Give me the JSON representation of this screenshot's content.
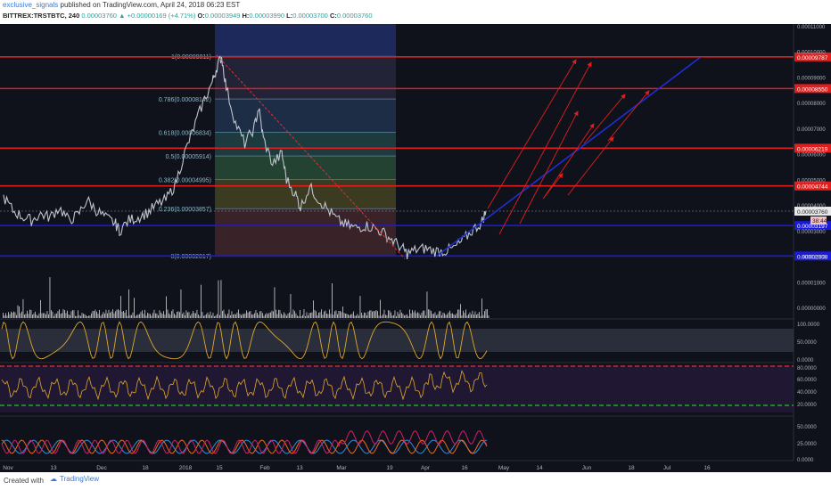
{
  "header": {
    "author": "exclusive_signals",
    "published_text": "published on TradingView.com, April 24, 2018 06:23 EST",
    "symbol": "BITTREX:TRSTBTC, 240",
    "ohlc": [
      {
        "label": "",
        "value": "0.00003760"
      },
      {
        "label": "",
        "value": "+0.00000169 (+4.71%)"
      },
      {
        "label": "O:",
        "value": "0.00003949"
      },
      {
        "label": "H:",
        "value": "0.00003990"
      },
      {
        "label": "L:",
        "value": "0.00003700"
      },
      {
        "label": "C:",
        "value": "0.00003760"
      }
    ]
  },
  "footer": {
    "created": "Created with",
    "brand": "TradingView"
  },
  "colors": {
    "background": "#0f121b",
    "candles": "#bfc4cc",
    "fib_box": "#2a3a8f",
    "red_level": "#e01e1e",
    "blue_level": "#1a1ad8",
    "trend_blue": "#1e2fd0",
    "rsi": "#e0a82a",
    "volume": "#dddddd"
  },
  "chart_data": [
    {
      "type": "candlestick",
      "name": "price",
      "y_scale": "log",
      "y_ticks": [
        "0.00011000",
        "0.00010000",
        "0.00009000",
        "0.00008000",
        "0.00007000",
        "0.00006000",
        "0.00005000",
        "0.00004000",
        "0.00003000",
        "0.00002000",
        "0.00001000",
        "0.00000000"
      ],
      "x_ticks": [
        "Nov",
        "13",
        "Dec",
        "18",
        "2018",
        "15",
        "Feb",
        "13",
        "Mar",
        "19",
        "Apr",
        "16",
        "May",
        "14",
        "Jun",
        "18",
        "Jul",
        "16"
      ],
      "series_points": [
        [
          0,
          4.32e-05
        ],
        [
          4,
          3.78e-05
        ],
        [
          8,
          3.55e-05
        ],
        [
          12,
          3.4e-05
        ],
        [
          16,
          3.65e-05
        ],
        [
          20,
          3.52e-05
        ],
        [
          24,
          3.9e-05
        ],
        [
          28,
          3.4e-05
        ],
        [
          32,
          3.6e-05
        ],
        [
          36,
          4.2e-05
        ],
        [
          40,
          3.8e-05
        ],
        [
          44,
          3.5e-05
        ],
        [
          48,
          3.3e-05
        ],
        [
          50,
          3e-05
        ],
        [
          54,
          3.4e-05
        ],
        [
          58,
          3.52e-05
        ],
        [
          62,
          3.7e-05
        ],
        [
          66,
          4e-05
        ],
        [
          70,
          4.2e-05
        ],
        [
          74,
          4.8e-05
        ],
        [
          78,
          6e-05
        ],
        [
          82,
          7e-05
        ],
        [
          86,
          8e-05
        ],
        [
          90,
          8.8e-05
        ],
        [
          92,
          9.4e-05
        ],
        [
          94,
          9.8e-05
        ],
        [
          96,
          8.6e-05
        ],
        [
          100,
          7.2e-05
        ],
        [
          104,
          6.4e-05
        ],
        [
          108,
          7e-05
        ],
        [
          110,
          7.8e-05
        ],
        [
          112,
          6.6e-05
        ],
        [
          116,
          5.6e-05
        ],
        [
          120,
          6e-05
        ],
        [
          122,
          5e-05
        ],
        [
          126,
          4.4e-05
        ],
        [
          128,
          3.9e-05
        ],
        [
          132,
          4.7e-05
        ],
        [
          136,
          4.2e-05
        ],
        [
          140,
          3.8e-05
        ],
        [
          144,
          3.4e-05
        ],
        [
          148,
          3.2e-05
        ],
        [
          152,
          3.1e-05
        ],
        [
          156,
          3.2e-05
        ],
        [
          160,
          3.1e-05
        ],
        [
          164,
          2.9e-05
        ],
        [
          168,
          2.6e-05
        ],
        [
          172,
          2.3e-05
        ],
        [
          174,
          2.1e-05
        ],
        [
          178,
          2.25e-05
        ],
        [
          182,
          2.3e-05
        ],
        [
          186,
          2.2e-05
        ],
        [
          190,
          2.2e-05
        ],
        [
          194,
          2.3e-05
        ],
        [
          198,
          2.6e-05
        ],
        [
          202,
          3e-05
        ],
        [
          206,
          3.3e-05
        ],
        [
          208,
          3.76e-05
        ]
      ],
      "last_price": "0.00003760",
      "countdown": "38:44",
      "horizontal_levels": [
        {
          "value": 9.787e-05,
          "label": "0.00009787",
          "color": "red"
        },
        {
          "value": 8.55e-05,
          "label": "0.00008550",
          "color": "red"
        },
        {
          "value": 6.219e-05,
          "label": "0.00006219",
          "color": "red"
        },
        {
          "value": 4.744e-05,
          "label": "0.00004744",
          "color": "red"
        },
        {
          "value": 3.197e-05,
          "label": "0.00003197",
          "color": "blue"
        },
        {
          "value": 2.008e-05,
          "label": "0.00002008",
          "color": "blue"
        }
      ],
      "fib_levels": [
        {
          "ratio": "1",
          "label": "1(0.00009811)",
          "value": 9.811e-05
        },
        {
          "ratio": "0.786",
          "label": "0.786(0.00008142)",
          "value": 8.142e-05
        },
        {
          "ratio": "0.618",
          "label": "0.618(0.00006834)",
          "value": 6.834e-05
        },
        {
          "ratio": "0.5",
          "label": "0.5(0.00005914)",
          "value": 5.914e-05
        },
        {
          "ratio": "0.382",
          "label": "0.382(0.00004995)",
          "value": 4.995e-05
        },
        {
          "ratio": "0.236",
          "label": "0.236(0.00003857)",
          "value": 3.857e-05
        },
        {
          "ratio": "0",
          "label": "0(0.00002017)",
          "value": 2.017e-05
        }
      ]
    },
    {
      "type": "line",
      "name": "stoch",
      "y_ticks": [
        "100.0000",
        "50.0000",
        "0.0000"
      ],
      "ylim": [
        0,
        100
      ]
    },
    {
      "type": "line",
      "name": "rsi",
      "y_ticks": [
        "80.0000",
        "60.0000",
        "40.0000",
        "20.0000"
      ],
      "ylim": [
        20,
        80
      ]
    },
    {
      "type": "line",
      "name": "dmi",
      "y_ticks": [
        "50.0000",
        "25.0000",
        "0.0000"
      ],
      "ylim": [
        0,
        60
      ]
    }
  ]
}
